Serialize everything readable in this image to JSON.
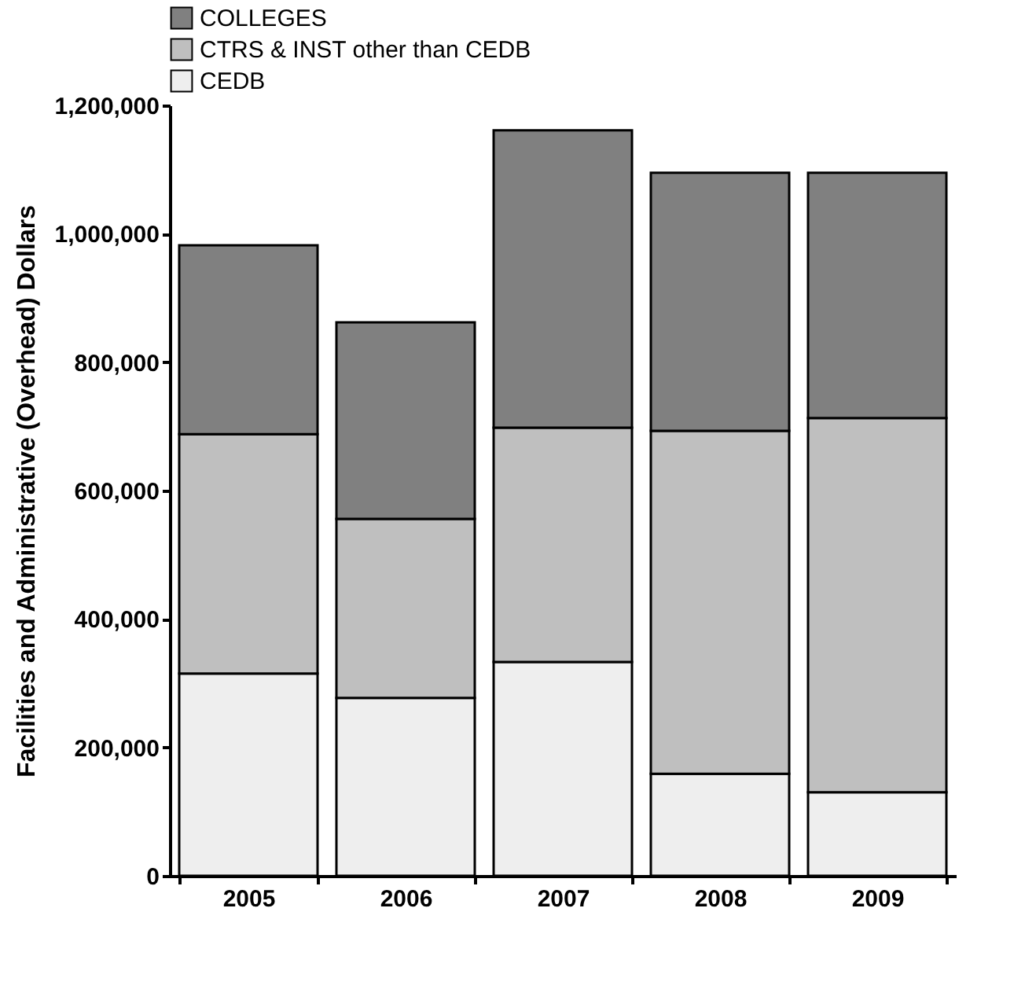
{
  "chart_data": {
    "type": "bar",
    "stacked": true,
    "ylabel": "Facilities and Administrative (Overhead) Dollars",
    "categories": [
      "2005",
      "2006",
      "2007",
      "2008",
      "2009"
    ],
    "series": [
      {
        "name": "CEDB",
        "color": "#eeeeee",
        "values": [
          315000,
          277000,
          333000,
          159000,
          130000
        ]
      },
      {
        "name": "CTRS & INST other than CEDB",
        "color": "#bfbfbf",
        "values": [
          373000,
          279000,
          365000,
          534000,
          583000
        ]
      },
      {
        "name": "COLLEGES",
        "color": "#808080",
        "values": [
          294000,
          306000,
          463000,
          402000,
          382000
        ]
      }
    ],
    "ylim": [
      0,
      1200000
    ],
    "yticks": [
      0,
      {
        "value": 200000,
        "label": "200,000"
      },
      {
        "value": 400000,
        "label": "400,000"
      },
      {
        "value": 600000,
        "label": "600,000"
      },
      {
        "value": 800000,
        "label": "800,000"
      },
      {
        "value": 1000000,
        "label": "1,000,000"
      },
      {
        "value": 1200000,
        "label": "1,200,000"
      }
    ],
    "legend": "top",
    "grid": false
  }
}
